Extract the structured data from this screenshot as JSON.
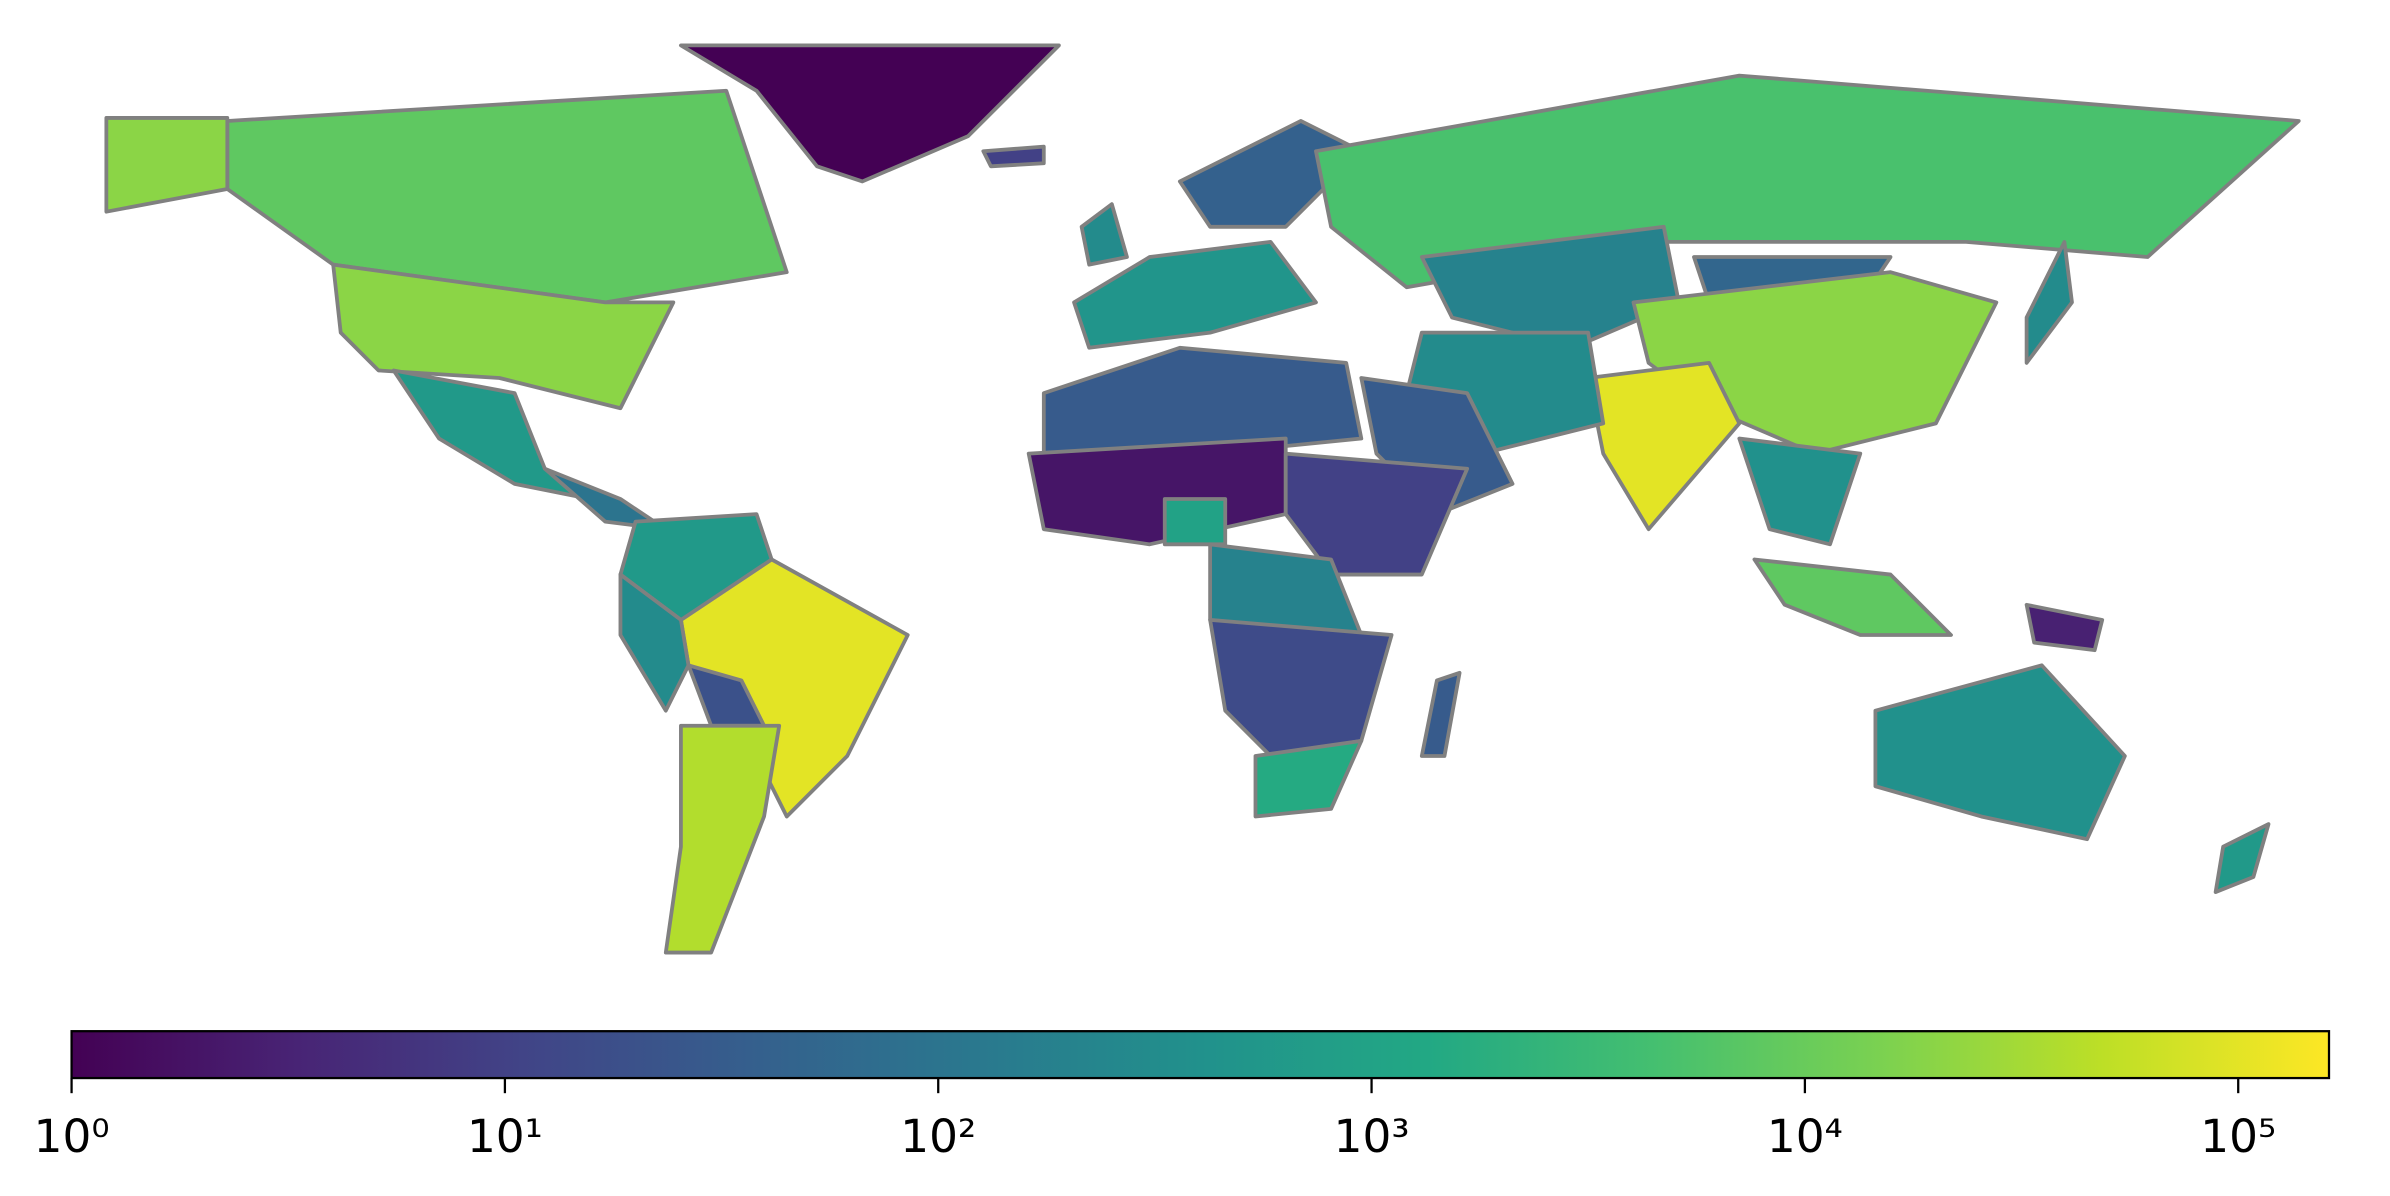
{
  "chart_data": {
    "type": "choropleth",
    "colormap": "viridis",
    "log_scale": true,
    "values": [
      8000,
      20000,
      20000,
      1,
      600,
      100,
      100000,
      600,
      300,
      20,
      40000,
      500,
      40,
      5000,
      200,
      50,
      20000,
      100000,
      300,
      30,
      30,
      2,
      1000,
      10,
      200,
      15,
      1500,
      30,
      400,
      8000,
      3,
      400,
      300,
      600,
      10,
      300
    ],
    "clim": [
      1,
      162000
    ],
    "ticks": [
      {
        "value": 1,
        "label": "10⁰"
      },
      {
        "value": 10,
        "label": "10¹"
      },
      {
        "value": 100,
        "label": "10²"
      },
      {
        "value": 1000,
        "label": "10³"
      },
      {
        "value": 10000,
        "label": "10⁴"
      },
      {
        "value": 100000,
        "label": "10⁵"
      }
    ]
  }
}
